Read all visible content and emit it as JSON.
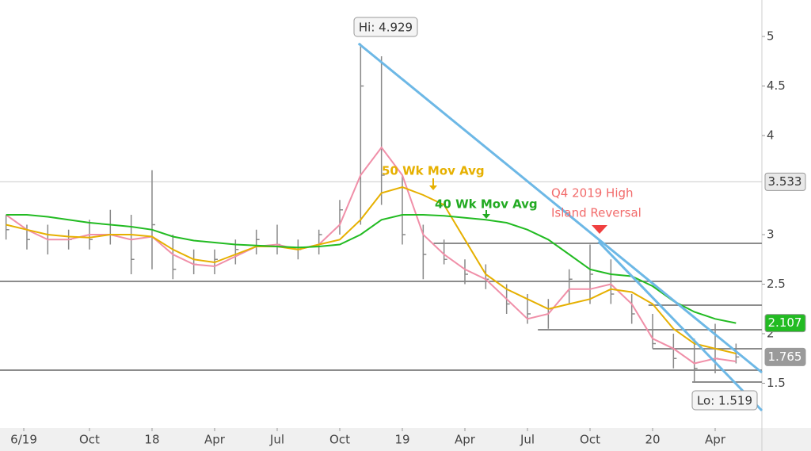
{
  "chart_data": {
    "type": "ohlc",
    "x": [
      -4,
      -3,
      -2,
      -1,
      0,
      1,
      2,
      3,
      4,
      5,
      6,
      7,
      8,
      9,
      10,
      11,
      12,
      13,
      14,
      15,
      16,
      17,
      18,
      19,
      20,
      21,
      22,
      23,
      24,
      25,
      26,
      27,
      28,
      29,
      30,
      31
    ],
    "high": [
      3.2,
      3.1,
      3.1,
      3.05,
      3.15,
      3.25,
      3.2,
      3.65,
      3.0,
      2.85,
      2.85,
      2.95,
      3.05,
      3.1,
      2.95,
      3.05,
      3.35,
      4.929,
      4.8,
      3.6,
      3.1,
      2.95,
      2.75,
      2.7,
      2.5,
      2.4,
      2.35,
      2.65,
      2.9,
      2.75,
      2.4,
      2.2,
      2.0,
      1.95,
      2.1,
      1.9
    ],
    "low": [
      2.95,
      2.85,
      2.8,
      2.85,
      2.85,
      2.9,
      2.6,
      2.65,
      2.55,
      2.6,
      2.6,
      2.7,
      2.8,
      2.8,
      2.75,
      2.8,
      3.0,
      3.1,
      3.3,
      2.9,
      2.55,
      2.7,
      2.5,
      2.45,
      2.2,
      2.1,
      2.05,
      2.3,
      2.3,
      2.3,
      2.1,
      1.85,
      1.65,
      1.519,
      1.6,
      1.7
    ],
    "close": [
      3.05,
      2.95,
      2.95,
      2.95,
      2.95,
      3.0,
      2.75,
      3.1,
      2.65,
      2.7,
      2.75,
      2.85,
      2.95,
      2.9,
      2.85,
      3.0,
      3.25,
      4.5,
      3.6,
      3.0,
      2.8,
      2.75,
      2.6,
      2.55,
      2.3,
      2.2,
      2.25,
      2.55,
      2.6,
      2.4,
      2.2,
      1.9,
      1.75,
      1.65,
      1.75,
      1.765
    ],
    "bar_color": "#888888",
    "series": [
      {
        "color": "#f08fa8",
        "values": [
          3.2,
          3.05,
          2.95,
          2.95,
          3.0,
          3.0,
          2.95,
          2.98,
          2.8,
          2.7,
          2.68,
          2.78,
          2.88,
          2.9,
          2.85,
          2.9,
          3.1,
          3.6,
          3.88,
          3.6,
          3.0,
          2.8,
          2.65,
          2.55,
          2.35,
          2.15,
          2.2,
          2.45,
          2.45,
          2.5,
          2.3,
          1.95,
          1.85,
          1.7,
          1.75,
          1.72
        ]
      },
      {
        "color": "#e6b000",
        "values": [
          3.1,
          3.05,
          3.0,
          2.98,
          2.97,
          3.0,
          3.0,
          2.98,
          2.85,
          2.75,
          2.72,
          2.8,
          2.88,
          2.88,
          2.85,
          2.9,
          2.95,
          3.15,
          3.42,
          3.48,
          3.4,
          3.3,
          2.95,
          2.6,
          2.45,
          2.35,
          2.25,
          2.3,
          2.35,
          2.45,
          2.42,
          2.3,
          2.05,
          1.9,
          1.85,
          1.8
        ]
      },
      {
        "color": "#22bb22",
        "values": [
          3.2,
          3.2,
          3.18,
          3.15,
          3.12,
          3.1,
          3.08,
          3.05,
          2.98,
          2.94,
          2.92,
          2.9,
          2.89,
          2.88,
          2.87,
          2.88,
          2.9,
          3.0,
          3.15,
          3.2,
          3.2,
          3.19,
          3.17,
          3.15,
          3.12,
          3.05,
          2.95,
          2.8,
          2.65,
          2.6,
          2.58,
          2.48,
          2.33,
          2.22,
          2.15,
          2.107
        ]
      }
    ],
    "levels": [
      {
        "value": 2.528,
        "start": -4.29
      },
      {
        "value": 1.632,
        "start": -4.29
      },
      {
        "value": 2.912,
        "start": 16.5
      },
      {
        "value": 2.04,
        "start": 21.5
      },
      {
        "value": 2.288,
        "start": 26.8
      },
      {
        "value": 1.848,
        "start": 27
      },
      {
        "value": 1.512,
        "start": 28.9
      }
    ],
    "level_color": "#8c8c8c",
    "trendlines": [
      {
        "x": [
          12.9,
          32.24
        ],
        "y": [
          4.929,
          1.608
        ]
      },
      {
        "x": [
          24.4,
          32.24
        ],
        "y": [
          2.93,
          1.224
        ]
      }
    ],
    "trend_color": "#6db8e6",
    "xlim": [
      -4.29,
      32.24
    ],
    "ylim": [
      1.048,
      5.368
    ],
    "xticks": [
      {
        "value": -3.15,
        "label": "6/19"
      },
      {
        "value": 0,
        "label": "Oct"
      },
      {
        "value": 3,
        "label": "18"
      },
      {
        "value": 6,
        "label": "Apr"
      },
      {
        "value": 9,
        "label": "Jul"
      },
      {
        "value": 12,
        "label": "Oct"
      },
      {
        "value": 15,
        "label": "19"
      },
      {
        "value": 18,
        "label": "Apr"
      },
      {
        "value": 21,
        "label": "Jul"
      },
      {
        "value": 24,
        "label": "Oct"
      },
      {
        "value": 27,
        "label": "20"
      },
      {
        "value": 30,
        "label": "Apr"
      }
    ],
    "yticks": [
      5,
      4.5,
      4,
      3,
      2.5,
      2,
      1.5
    ],
    "price_labels": [
      {
        "value": 3.533,
        "color": "#e8e8e8"
      },
      {
        "value": 2.107,
        "color": "#22bb22"
      },
      {
        "value": 1.765,
        "color": "#9a9a9a"
      }
    ],
    "annotations": {
      "hi": "Hi: 4.929",
      "lo": "Lo: 1.519",
      "q4_line1": "Q4 2019 High",
      "q4_line2": "Island Reversal",
      "ma50": "50 Wk Mov Avg",
      "ma40": "40 Wk Mov Avg"
    }
  }
}
